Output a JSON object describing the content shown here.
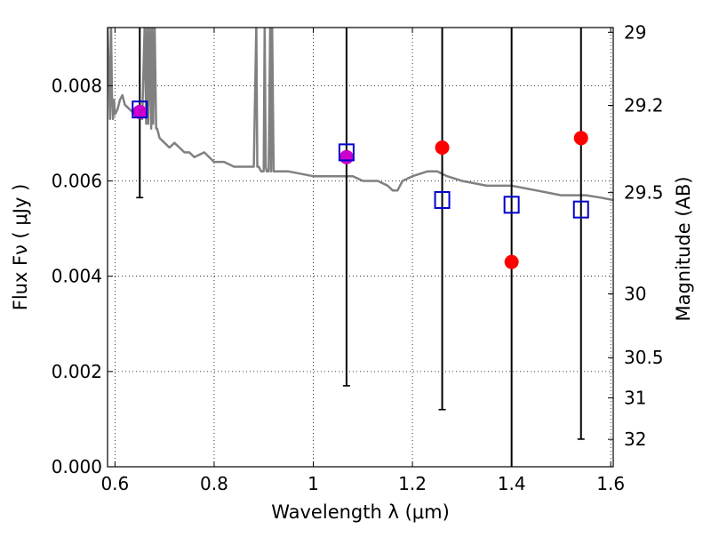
{
  "chart_data": {
    "type": "scatter",
    "title": "",
    "xlabel": "Wavelength  λ (μm)",
    "ylabel": "Flux  Fν  ( μJy )",
    "y2label": "Magnitude (AB)",
    "xlim": [
      0.585,
      1.605
    ],
    "ylim": [
      0.0,
      0.00922
    ],
    "grid": true,
    "x_ticks": [
      {
        "value": 0.6,
        "label": "0.6"
      },
      {
        "value": 0.8,
        "label": "0.8"
      },
      {
        "value": 1.0,
        "label": "1"
      },
      {
        "value": 1.2,
        "label": "1.2"
      },
      {
        "value": 1.4,
        "label": "1.4"
      },
      {
        "value": 1.6,
        "label": "1.6"
      }
    ],
    "y_ticks": [
      {
        "value": 0.0,
        "label": "0.000"
      },
      {
        "value": 0.002,
        "label": "0.002"
      },
      {
        "value": 0.004,
        "label": "0.004"
      },
      {
        "value": 0.006,
        "label": "0.006"
      },
      {
        "value": 0.008,
        "label": "0.008"
      }
    ],
    "mag_ticks": [
      {
        "mag": 29,
        "label": "29"
      },
      {
        "mag": 29.2,
        "label": "29.2"
      },
      {
        "mag": 29.5,
        "label": "29.5"
      },
      {
        "mag": 30,
        "label": "30"
      },
      {
        "mag": 30.5,
        "label": "30.5"
      },
      {
        "mag": 31,
        "label": "31"
      },
      {
        "mag": 32,
        "label": "32"
      }
    ],
    "model_sed": {
      "color": "#808080",
      "x": [
        0.585,
        0.59,
        0.592,
        0.594,
        0.596,
        0.598,
        0.6,
        0.605,
        0.61,
        0.615,
        0.62,
        0.63,
        0.64,
        0.65,
        0.655,
        0.66,
        0.663,
        0.665,
        0.667,
        0.67,
        0.673,
        0.675,
        0.677,
        0.68,
        0.683,
        0.685,
        0.69,
        0.7,
        0.71,
        0.72,
        0.73,
        0.74,
        0.75,
        0.76,
        0.78,
        0.8,
        0.82,
        0.84,
        0.86,
        0.88,
        0.885,
        0.887,
        0.889,
        0.89,
        0.895,
        0.9,
        0.902,
        0.904,
        0.906,
        0.91,
        0.913,
        0.915,
        0.917,
        0.92,
        0.95,
        1.0,
        1.05,
        1.08,
        1.1,
        1.13,
        1.15,
        1.16,
        1.17,
        1.18,
        1.2,
        1.23,
        1.25,
        1.27,
        1.3,
        1.35,
        1.4,
        1.45,
        1.5,
        1.55,
        1.58,
        1.605
      ],
      "y": [
        0.0093,
        0.0073,
        0.0093,
        0.0078,
        0.0073,
        0.0077,
        0.0074,
        0.0075,
        0.0077,
        0.0078,
        0.0076,
        0.0075,
        0.0074,
        0.0074,
        0.0073,
        0.0093,
        0.0072,
        0.0093,
        0.0072,
        0.0093,
        0.0071,
        0.0093,
        0.0072,
        0.0093,
        0.0071,
        0.0071,
        0.0069,
        0.0068,
        0.0067,
        0.0068,
        0.0067,
        0.0066,
        0.0066,
        0.0065,
        0.0066,
        0.0064,
        0.0064,
        0.0063,
        0.0063,
        0.0063,
        0.0093,
        0.0063,
        0.0063,
        0.0063,
        0.0062,
        0.0062,
        0.0093,
        0.0063,
        0.0062,
        0.0062,
        0.0093,
        0.0062,
        0.0093,
        0.0062,
        0.0062,
        0.0061,
        0.0061,
        0.0061,
        0.006,
        0.006,
        0.0059,
        0.0058,
        0.0058,
        0.006,
        0.0061,
        0.0062,
        0.0062,
        0.0061,
        0.006,
        0.0059,
        0.0059,
        0.0058,
        0.0057,
        0.0057,
        0.00565,
        0.0056
      ]
    },
    "series": [
      {
        "name": "",
        "marker": "circle",
        "color": "#ff0000",
        "points": [
          {
            "x": 0.65,
            "y": 0.00745
          },
          {
            "x": 1.067,
            "y": 0.0065
          },
          {
            "x": 1.26,
            "y": 0.0067
          },
          {
            "x": 1.4,
            "y": 0.0043
          },
          {
            "x": 1.54,
            "y": 0.0069
          }
        ]
      },
      {
        "name": "",
        "marker": "open-square",
        "color": "#0000cc",
        "points": [
          {
            "x": 0.65,
            "y": 0.0075,
            "ylo": 0.00565,
            "yhi": 0.0093
          },
          {
            "x": 1.067,
            "y": 0.0066,
            "ylo": 0.0017,
            "yhi": 0.0093
          },
          {
            "x": 1.26,
            "y": 0.0056,
            "ylo": 0.0012,
            "yhi": 0.0093
          },
          {
            "x": 1.4,
            "y": 0.0055,
            "ylo": 0.0,
            "yhi": 0.0093
          },
          {
            "x": 1.54,
            "y": 0.0054,
            "ylo": 0.00058,
            "yhi": 0.0093
          }
        ]
      }
    ],
    "errorbar_color": "#000000",
    "overlap_color": "#cc00cc"
  }
}
